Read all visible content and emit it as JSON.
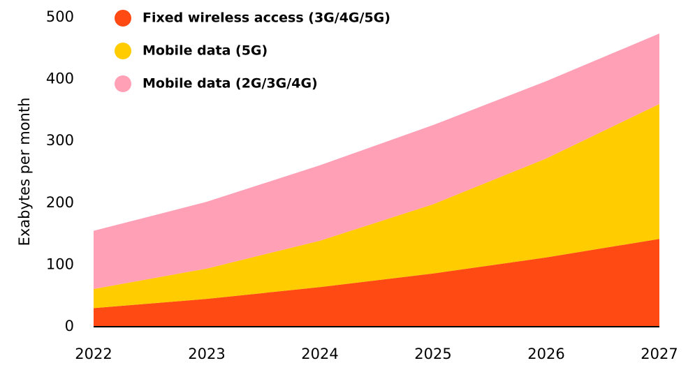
{
  "chart_data": {
    "type": "stacked_area",
    "y_label": "Exabytes per month",
    "x": [
      2022,
      2023,
      2024,
      2025,
      2026,
      2027
    ],
    "xlim": [
      2022,
      2027
    ],
    "xticks": [
      2022,
      2023,
      2024,
      2025,
      2026,
      2027
    ],
    "ylim": [
      0,
      500
    ],
    "yticks": [
      0,
      100,
      200,
      300,
      400,
      500
    ],
    "legend": "upper left",
    "series": [
      {
        "name": "Fixed wireless access (3G/4G/5G)",
        "color": "#ff4a14",
        "values": [
          30,
          45,
          64,
          86,
          112,
          142
        ]
      },
      {
        "name": "Mobile data (5G)",
        "color": "#ffcc00",
        "values": [
          31,
          49,
          75,
          112,
          160,
          218
        ]
      },
      {
        "name": "Mobile data (2G/3G/4G)",
        "color": "#ffa0b7",
        "values": [
          94,
          108,
          122,
          128,
          125,
          114
        ]
      }
    ]
  }
}
